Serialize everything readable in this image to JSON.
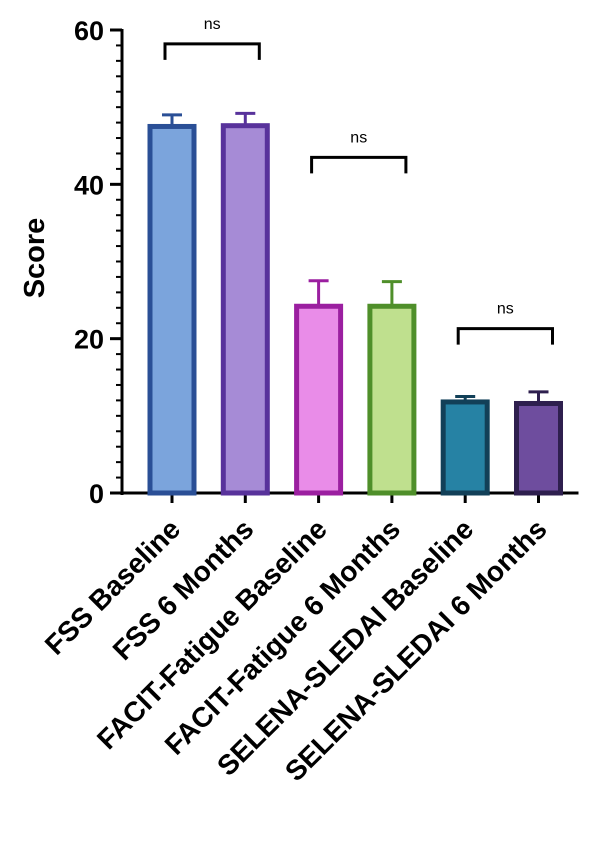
{
  "chart_data": {
    "type": "bar",
    "title": "",
    "xlabel": "",
    "ylabel": "Score",
    "ylim": [
      0,
      60
    ],
    "major_ticks": [
      0,
      20,
      40,
      60
    ],
    "minor_tick_step": 2,
    "grid": false,
    "categories": [
      "FSS Baseline",
      "FSS 6 Months",
      "FACIT-Fatigue Baseline",
      "FACIT-Fatigue 6 Months",
      "SELENA-SLEDAI Baseline",
      "SELENA-SLEDAI 6 Months"
    ],
    "values": [
      47.5,
      47.6,
      24.2,
      24.2,
      11.8,
      11.6
    ],
    "error_upper": [
      49.0,
      49.2,
      27.5,
      27.4,
      12.5,
      13.1
    ],
    "fill_colors": [
      "#7ba4dc",
      "#a68bd6",
      "#e98ce8",
      "#bfe08e",
      "#2682a4",
      "#6e4d9e"
    ],
    "stroke_colors": [
      "#2a4f96",
      "#58329b",
      "#9b1fa0",
      "#4f8f2a",
      "#124058",
      "#2e1f4e"
    ],
    "significance": [
      {
        "from": 0,
        "to": 1,
        "y": 58.2,
        "label": "ns"
      },
      {
        "from": 2,
        "to": 3,
        "y": 43.5,
        "label": "ns"
      },
      {
        "from": 4,
        "to": 5,
        "y": 21.3,
        "label": "ns"
      }
    ]
  }
}
